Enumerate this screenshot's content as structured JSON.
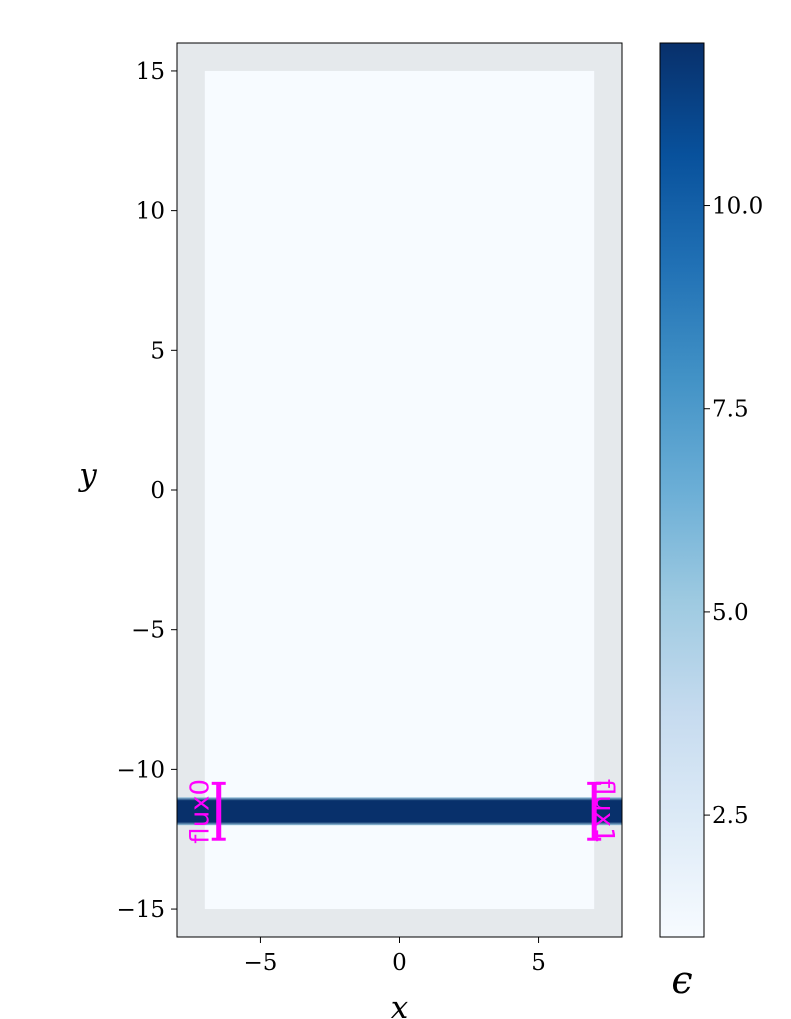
{
  "chart_data": {
    "type": "heatmap",
    "title": "",
    "xlabel": "x",
    "ylabel": "y",
    "xlim": [
      -8,
      8
    ],
    "ylim": [
      -16,
      16
    ],
    "x_ticks": [
      -5,
      0,
      5
    ],
    "x_tick_labels": [
      "−5",
      "0",
      "5"
    ],
    "y_ticks": [
      15,
      10,
      5,
      0,
      -5,
      -10,
      -15
    ],
    "y_tick_labels": [
      "15",
      "10",
      "5",
      "0",
      "−5",
      "−10",
      "−15"
    ],
    "grid": false,
    "colormap": "Blues",
    "colorbar": {
      "label": "ϵ",
      "range": [
        1,
        12
      ],
      "ticks": [
        2.5,
        5.0,
        7.5,
        10.0
      ],
      "tick_labels": [
        "2.5",
        "5.0",
        "7.5",
        "10.0"
      ]
    },
    "background_epsilon": 1,
    "waveguide": {
      "epsilon": 12,
      "y_center": -11.5,
      "width": 1,
      "x_range": [
        -8,
        8
      ]
    },
    "pml": {
      "thickness": 1,
      "color": "#e5e9ec"
    },
    "flux_regions": [
      {
        "label": "flux0",
        "x": -6.5,
        "y_center": -11.5,
        "height": 2,
        "color": "#ff00ff"
      },
      {
        "label": "flux1",
        "x": 7,
        "y_center": -11.5,
        "height": 2,
        "color": "#ff00ff"
      }
    ]
  }
}
